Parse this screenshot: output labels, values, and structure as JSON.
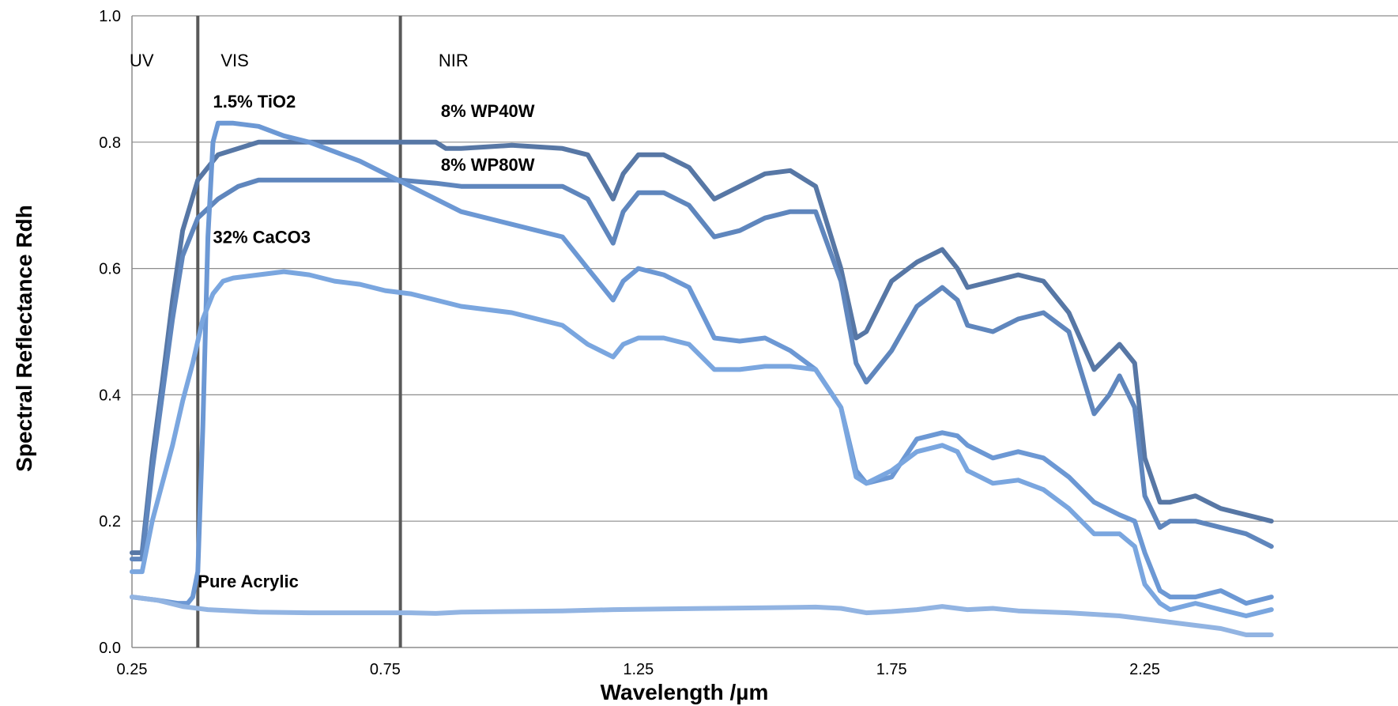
{
  "chart_data": {
    "type": "line",
    "title": "",
    "xlabel": "Wavelength /µm",
    "ylabel": "Spectral Reflectance Rdh",
    "xlim": [
      0.25,
      2.5
    ],
    "ylim": [
      0.0,
      1.0
    ],
    "x_ticks": [
      0.25,
      0.75,
      1.25,
      1.75,
      2.25
    ],
    "x_tick_labels": [
      "0.25",
      "0.75",
      "1.25",
      "1.75",
      "2.25"
    ],
    "y_ticks": [
      0.0,
      0.2,
      0.4,
      0.6,
      0.8,
      1.0
    ],
    "y_tick_labels": [
      "0.0",
      "0.2",
      "0.4",
      "0.6",
      "0.8",
      "1.0"
    ],
    "grid": "horizontal",
    "region_boundaries": [
      0.38,
      0.78
    ],
    "regions": [
      {
        "label": "UV",
        "x": 0.25
      },
      {
        "label": "VIS",
        "x": 0.43
      },
      {
        "label": "NIR",
        "x": 0.86
      }
    ],
    "colors": {
      "8% WP40W": "#5777a5",
      "8% WP80W": "#5f86bd",
      "1.5% TiO2": "#6c98d4",
      "32% CaCO3": "#7aa6df",
      "Pure Acrylic": "#92b4e2",
      "divider": "#595959"
    },
    "series": [
      {
        "name": "8% WP40W",
        "label_anchor": {
          "x": 0.86,
          "y": 0.84
        },
        "x": [
          0.25,
          0.27,
          0.29,
          0.31,
          0.33,
          0.35,
          0.38,
          0.42,
          0.46,
          0.5,
          0.6,
          0.7,
          0.78,
          0.85,
          0.87,
          0.9,
          1.0,
          1.1,
          1.15,
          1.2,
          1.22,
          1.25,
          1.3,
          1.35,
          1.4,
          1.45,
          1.5,
          1.55,
          1.6,
          1.65,
          1.68,
          1.7,
          1.75,
          1.8,
          1.85,
          1.88,
          1.9,
          1.95,
          2.0,
          2.05,
          2.1,
          2.15,
          2.2,
          2.23,
          2.25,
          2.28,
          2.3,
          2.35,
          2.4,
          2.45,
          2.5
        ],
        "y": [
          0.15,
          0.15,
          0.3,
          0.42,
          0.55,
          0.66,
          0.74,
          0.78,
          0.79,
          0.8,
          0.8,
          0.8,
          0.8,
          0.8,
          0.79,
          0.79,
          0.795,
          0.79,
          0.78,
          0.71,
          0.75,
          0.78,
          0.78,
          0.76,
          0.71,
          0.73,
          0.75,
          0.755,
          0.73,
          0.6,
          0.49,
          0.5,
          0.58,
          0.61,
          0.63,
          0.6,
          0.57,
          0.58,
          0.59,
          0.58,
          0.53,
          0.44,
          0.48,
          0.45,
          0.3,
          0.23,
          0.23,
          0.24,
          0.22,
          0.21,
          0.2
        ]
      },
      {
        "name": "8% WP80W",
        "label_anchor": {
          "x": 0.86,
          "y": 0.755
        },
        "x": [
          0.25,
          0.27,
          0.29,
          0.31,
          0.33,
          0.35,
          0.38,
          0.42,
          0.46,
          0.5,
          0.6,
          0.7,
          0.78,
          0.85,
          0.9,
          1.0,
          1.1,
          1.15,
          1.2,
          1.22,
          1.25,
          1.3,
          1.35,
          1.4,
          1.45,
          1.5,
          1.55,
          1.6,
          1.65,
          1.68,
          1.7,
          1.75,
          1.8,
          1.85,
          1.88,
          1.9,
          1.95,
          2.0,
          2.05,
          2.1,
          2.15,
          2.18,
          2.2,
          2.23,
          2.25,
          2.28,
          2.3,
          2.35,
          2.4,
          2.45,
          2.5
        ],
        "y": [
          0.14,
          0.14,
          0.28,
          0.4,
          0.52,
          0.62,
          0.68,
          0.71,
          0.73,
          0.74,
          0.74,
          0.74,
          0.74,
          0.735,
          0.73,
          0.73,
          0.73,
          0.71,
          0.64,
          0.69,
          0.72,
          0.72,
          0.7,
          0.65,
          0.66,
          0.68,
          0.69,
          0.69,
          0.58,
          0.45,
          0.42,
          0.47,
          0.54,
          0.57,
          0.55,
          0.51,
          0.5,
          0.52,
          0.53,
          0.5,
          0.37,
          0.4,
          0.43,
          0.38,
          0.24,
          0.19,
          0.2,
          0.2,
          0.19,
          0.18,
          0.16
        ]
      },
      {
        "name": "1.5% TiO2",
        "label_anchor": {
          "x": 0.41,
          "y": 0.855
        },
        "x": [
          0.25,
          0.3,
          0.34,
          0.36,
          0.37,
          0.38,
          0.39,
          0.4,
          0.41,
          0.42,
          0.45,
          0.5,
          0.55,
          0.6,
          0.65,
          0.7,
          0.75,
          0.8,
          0.85,
          0.9,
          1.0,
          1.1,
          1.15,
          1.2,
          1.22,
          1.25,
          1.3,
          1.35,
          1.4,
          1.45,
          1.5,
          1.55,
          1.6,
          1.65,
          1.68,
          1.7,
          1.75,
          1.8,
          1.85,
          1.88,
          1.9,
          1.95,
          2.0,
          2.05,
          2.1,
          2.15,
          2.2,
          2.23,
          2.25,
          2.28,
          2.3,
          2.35,
          2.4,
          2.45,
          2.5
        ],
        "y": [
          0.08,
          0.075,
          0.07,
          0.07,
          0.08,
          0.12,
          0.35,
          0.65,
          0.8,
          0.83,
          0.83,
          0.825,
          0.81,
          0.8,
          0.785,
          0.77,
          0.75,
          0.73,
          0.71,
          0.69,
          0.67,
          0.65,
          0.6,
          0.55,
          0.58,
          0.6,
          0.59,
          0.57,
          0.49,
          0.485,
          0.49,
          0.47,
          0.44,
          0.38,
          0.28,
          0.26,
          0.27,
          0.33,
          0.34,
          0.335,
          0.32,
          0.3,
          0.31,
          0.3,
          0.27,
          0.23,
          0.21,
          0.2,
          0.15,
          0.09,
          0.08,
          0.08,
          0.09,
          0.07,
          0.08
        ]
      },
      {
        "name": "32% CaCO3",
        "label_anchor": {
          "x": 0.41,
          "y": 0.64
        },
        "x": [
          0.25,
          0.27,
          0.29,
          0.31,
          0.33,
          0.35,
          0.37,
          0.39,
          0.41,
          0.43,
          0.45,
          0.5,
          0.55,
          0.6,
          0.65,
          0.7,
          0.75,
          0.8,
          0.85,
          0.9,
          1.0,
          1.1,
          1.15,
          1.2,
          1.22,
          1.25,
          1.3,
          1.35,
          1.4,
          1.45,
          1.5,
          1.55,
          1.6,
          1.65,
          1.68,
          1.7,
          1.75,
          1.8,
          1.85,
          1.88,
          1.9,
          1.95,
          2.0,
          2.05,
          2.1,
          2.15,
          2.2,
          2.23,
          2.25,
          2.28,
          2.3,
          2.35,
          2.4,
          2.45,
          2.5
        ],
        "y": [
          0.12,
          0.12,
          0.2,
          0.26,
          0.32,
          0.39,
          0.45,
          0.52,
          0.56,
          0.58,
          0.585,
          0.59,
          0.595,
          0.59,
          0.58,
          0.575,
          0.565,
          0.56,
          0.55,
          0.54,
          0.53,
          0.51,
          0.48,
          0.46,
          0.48,
          0.49,
          0.49,
          0.48,
          0.44,
          0.44,
          0.445,
          0.445,
          0.44,
          0.38,
          0.27,
          0.26,
          0.28,
          0.31,
          0.32,
          0.31,
          0.28,
          0.26,
          0.265,
          0.25,
          0.22,
          0.18,
          0.18,
          0.16,
          0.1,
          0.07,
          0.06,
          0.07,
          0.06,
          0.05,
          0.06
        ]
      },
      {
        "name": "Pure Acrylic",
        "label_anchor": {
          "x": 0.38,
          "y": 0.095
        },
        "x": [
          0.25,
          0.3,
          0.35,
          0.4,
          0.5,
          0.6,
          0.7,
          0.8,
          0.85,
          0.9,
          1.0,
          1.1,
          1.2,
          1.3,
          1.4,
          1.5,
          1.6,
          1.65,
          1.7,
          1.75,
          1.8,
          1.85,
          1.9,
          1.95,
          2.0,
          2.1,
          2.2,
          2.25,
          2.3,
          2.35,
          2.4,
          2.45,
          2.5
        ],
        "y": [
          0.08,
          0.075,
          0.065,
          0.06,
          0.056,
          0.055,
          0.055,
          0.055,
          0.054,
          0.056,
          0.057,
          0.058,
          0.06,
          0.061,
          0.062,
          0.063,
          0.064,
          0.062,
          0.055,
          0.057,
          0.06,
          0.065,
          0.06,
          0.062,
          0.058,
          0.055,
          0.05,
          0.045,
          0.04,
          0.035,
          0.03,
          0.02,
          0.02
        ]
      }
    ]
  }
}
